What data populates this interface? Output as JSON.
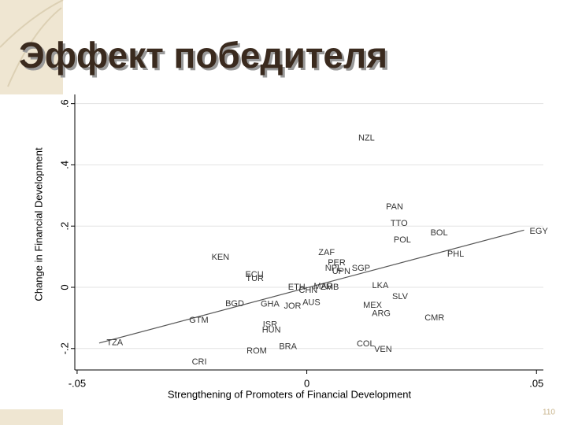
{
  "slide_title": "Эффект победителя",
  "slide_number": "110",
  "chart_data": {
    "type": "scatter",
    "x_label": "Strengthening of Promoters of Financial Development",
    "y_label": "Change in Financial Development",
    "xlim": [
      -0.0505,
      0.0515
    ],
    "ylim": [
      -0.27,
      0.63
    ],
    "xticks": [
      {
        "value": -0.05,
        "label": "-.05"
      },
      0,
      {
        "value": 0.05,
        "label": ".05"
      }
    ],
    "yticks": [
      {
        "value": -0.2,
        "label": "-.2"
      },
      0,
      {
        "value": 0.2,
        "label": ".2"
      },
      {
        "value": 0.4,
        "label": ".4"
      },
      {
        "value": 0.6,
        "label": ".6"
      }
    ],
    "grid": true,
    "color": "#333333",
    "labels": [
      "NZL",
      "PAN",
      "TTO",
      "POL",
      "BOL",
      "EGY",
      "PHL",
      "KEN",
      "ZAF",
      "PER",
      "NPL",
      "UPN",
      "SGP",
      "ECU",
      "TUR",
      "LKA",
      "SLV",
      "ETH",
      "CHN",
      "MAR",
      "ZMB",
      "GHA",
      "JOR",
      "AUS",
      "BGD",
      "MEX",
      "ARG",
      "CMR",
      "GTM",
      "ISR",
      "HUN",
      "TZA",
      "COL",
      "VEN",
      "BRA",
      "ROM",
      "CRI"
    ],
    "x": [
      0.013,
      0.0191,
      0.0201,
      0.0208,
      0.0288,
      0.0505,
      0.0324,
      -0.0188,
      0.0043,
      0.0065,
      0.0058,
      0.0075,
      0.0118,
      -0.0114,
      -0.0113,
      0.016,
      0.0203,
      -0.0022,
      0.0003,
      0.0036,
      0.005,
      -0.008,
      -0.0031,
      0.001,
      -0.0157,
      0.0143,
      0.0162,
      0.0278,
      -0.0235,
      -0.008,
      -0.0077,
      -0.0418,
      0.0128,
      0.0166,
      -0.0041,
      -0.0109,
      -0.0234
    ],
    "y": [
      0.487,
      0.262,
      0.208,
      0.154,
      0.177,
      0.182,
      0.108,
      0.097,
      0.113,
      0.079,
      0.062,
      0.051,
      0.062,
      0.041,
      0.028,
      0.005,
      -0.031,
      0.0,
      -0.01,
      0.002,
      0.0,
      -0.056,
      -0.062,
      -0.051,
      -0.054,
      -0.059,
      -0.087,
      -0.1,
      -0.108,
      -0.123,
      -0.141,
      -0.182,
      -0.185,
      -0.203,
      -0.195,
      -0.208,
      -0.244
    ],
    "fit": {
      "x": [
        -0.0452,
        0.0473
      ],
      "y": [
        -0.182,
        0.187
      ],
      "color": "#555555"
    }
  }
}
